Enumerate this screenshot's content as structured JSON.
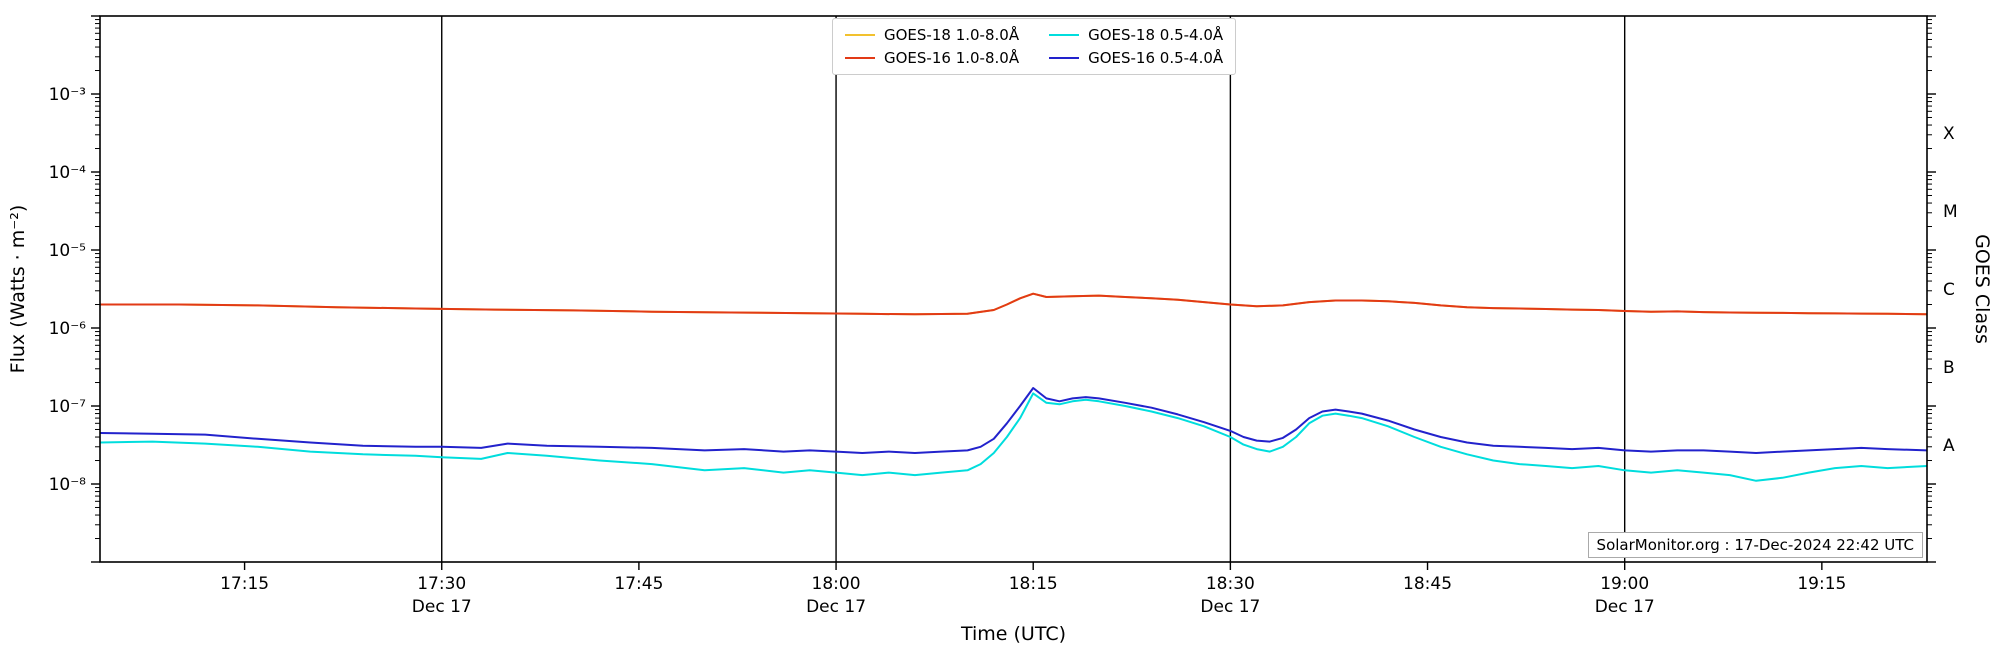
{
  "figure": {
    "background": "#ffffff",
    "annotation": "SolarMonitor.org : 17-Dec-2024 22:42 UTC"
  },
  "chart_data": {
    "type": "line",
    "title": "",
    "xlabel": "Time (UTC)",
    "ylabel": "Flux (Watts · m⁻²)",
    "ylabel_right": "GOES Class",
    "x_unit": "minutes after 17:00 UTC",
    "xlim": [
      4,
      143
    ],
    "ylim_log10": [
      -9,
      -2
    ],
    "grid": false,
    "legend_position": "top-center",
    "x_ticks": [
      {
        "t": 15,
        "label": "17:15"
      },
      {
        "t": 30,
        "label": "17:30",
        "day": "Dec 17"
      },
      {
        "t": 45,
        "label": "17:45"
      },
      {
        "t": 60,
        "label": "18:00",
        "day": "Dec 17"
      },
      {
        "t": 75,
        "label": "18:15"
      },
      {
        "t": 90,
        "label": "18:30",
        "day": "Dec 17"
      },
      {
        "t": 105,
        "label": "18:45"
      },
      {
        "t": 120,
        "label": "19:00",
        "day": "Dec 17"
      },
      {
        "t": 135,
        "label": "19:15"
      }
    ],
    "day_lines": [
      30,
      60,
      90,
      120
    ],
    "y_ticks": [
      {
        "log10": -3,
        "label": "10⁻³"
      },
      {
        "log10": -4,
        "label": "10⁻⁴"
      },
      {
        "log10": -5,
        "label": "10⁻⁵"
      },
      {
        "log10": -6,
        "label": "10⁻⁶"
      },
      {
        "log10": -7,
        "label": "10⁻⁷"
      },
      {
        "log10": -8,
        "label": "10⁻⁸"
      }
    ],
    "goes_classes": [
      {
        "label": "X",
        "log10": -3.5
      },
      {
        "label": "M",
        "log10": -4.5
      },
      {
        "label": "C",
        "log10": -5.5
      },
      {
        "label": "B",
        "log10": -6.5
      },
      {
        "label": "A",
        "log10": -7.5
      }
    ],
    "series": [
      {
        "name": "GOES-18 1.0-8.0Å",
        "color": "#f2c12e",
        "points": [
          [
            4,
            2e-06
          ],
          [
            10,
            2e-06
          ],
          [
            16,
            1.95e-06
          ],
          [
            22,
            1.85e-06
          ],
          [
            28,
            1.78e-06
          ],
          [
            34,
            1.72e-06
          ],
          [
            40,
            1.68e-06
          ],
          [
            46,
            1.62e-06
          ],
          [
            52,
            1.58e-06
          ],
          [
            58,
            1.55e-06
          ],
          [
            62,
            1.52e-06
          ],
          [
            66,
            1.5e-06
          ],
          [
            70,
            1.52e-06
          ],
          [
            72,
            1.7e-06
          ],
          [
            73,
            2e-06
          ],
          [
            74,
            2.4e-06
          ],
          [
            75,
            2.75e-06
          ],
          [
            76,
            2.5e-06
          ],
          [
            78,
            2.55e-06
          ],
          [
            80,
            2.6e-06
          ],
          [
            82,
            2.5e-06
          ],
          [
            84,
            2.4e-06
          ],
          [
            86,
            2.3e-06
          ],
          [
            88,
            2.15e-06
          ],
          [
            90,
            2e-06
          ],
          [
            92,
            1.9e-06
          ],
          [
            94,
            1.95e-06
          ],
          [
            96,
            2.15e-06
          ],
          [
            98,
            2.25e-06
          ],
          [
            100,
            2.25e-06
          ],
          [
            102,
            2.2e-06
          ],
          [
            104,
            2.1e-06
          ],
          [
            106,
            1.95e-06
          ],
          [
            108,
            1.85e-06
          ],
          [
            110,
            1.8e-06
          ],
          [
            112,
            1.78e-06
          ],
          [
            114,
            1.75e-06
          ],
          [
            116,
            1.72e-06
          ],
          [
            118,
            1.7e-06
          ],
          [
            120,
            1.65e-06
          ],
          [
            122,
            1.62e-06
          ],
          [
            124,
            1.63e-06
          ],
          [
            126,
            1.6e-06
          ],
          [
            128,
            1.58e-06
          ],
          [
            130,
            1.57e-06
          ],
          [
            132,
            1.56e-06
          ],
          [
            134,
            1.55e-06
          ],
          [
            136,
            1.54e-06
          ],
          [
            138,
            1.53e-06
          ],
          [
            140,
            1.52e-06
          ],
          [
            143,
            1.5e-06
          ]
        ]
      },
      {
        "name": "GOES-16 1.0-8.0Å",
        "color": "#e23a16",
        "points": [
          [
            4,
            2e-06
          ],
          [
            10,
            2e-06
          ],
          [
            16,
            1.95e-06
          ],
          [
            22,
            1.85e-06
          ],
          [
            28,
            1.78e-06
          ],
          [
            34,
            1.72e-06
          ],
          [
            40,
            1.68e-06
          ],
          [
            46,
            1.62e-06
          ],
          [
            52,
            1.58e-06
          ],
          [
            58,
            1.55e-06
          ],
          [
            62,
            1.52e-06
          ],
          [
            66,
            1.5e-06
          ],
          [
            70,
            1.52e-06
          ],
          [
            72,
            1.7e-06
          ],
          [
            73,
            2e-06
          ],
          [
            74,
            2.4e-06
          ],
          [
            75,
            2.75e-06
          ],
          [
            76,
            2.5e-06
          ],
          [
            78,
            2.55e-06
          ],
          [
            80,
            2.6e-06
          ],
          [
            82,
            2.5e-06
          ],
          [
            84,
            2.4e-06
          ],
          [
            86,
            2.3e-06
          ],
          [
            88,
            2.15e-06
          ],
          [
            90,
            2e-06
          ],
          [
            92,
            1.9e-06
          ],
          [
            94,
            1.95e-06
          ],
          [
            96,
            2.15e-06
          ],
          [
            98,
            2.25e-06
          ],
          [
            100,
            2.25e-06
          ],
          [
            102,
            2.2e-06
          ],
          [
            104,
            2.1e-06
          ],
          [
            106,
            1.95e-06
          ],
          [
            108,
            1.85e-06
          ],
          [
            110,
            1.8e-06
          ],
          [
            112,
            1.78e-06
          ],
          [
            114,
            1.75e-06
          ],
          [
            116,
            1.72e-06
          ],
          [
            118,
            1.7e-06
          ],
          [
            120,
            1.65e-06
          ],
          [
            122,
            1.62e-06
          ],
          [
            124,
            1.63e-06
          ],
          [
            126,
            1.6e-06
          ],
          [
            128,
            1.58e-06
          ],
          [
            130,
            1.57e-06
          ],
          [
            132,
            1.56e-06
          ],
          [
            134,
            1.55e-06
          ],
          [
            136,
            1.54e-06
          ],
          [
            138,
            1.53e-06
          ],
          [
            140,
            1.52e-06
          ],
          [
            143,
            1.5e-06
          ]
        ]
      },
      {
        "name": "GOES-18 0.5-4.0Å",
        "color": "#00dddd",
        "points": [
          [
            4,
            3.4e-08
          ],
          [
            8,
            3.5e-08
          ],
          [
            12,
            3.3e-08
          ],
          [
            16,
            3e-08
          ],
          [
            20,
            2.6e-08
          ],
          [
            24,
            2.4e-08
          ],
          [
            28,
            2.3e-08
          ],
          [
            30,
            2.2e-08
          ],
          [
            33,
            2.1e-08
          ],
          [
            35,
            2.5e-08
          ],
          [
            38,
            2.3e-08
          ],
          [
            42,
            2e-08
          ],
          [
            46,
            1.8e-08
          ],
          [
            50,
            1.5e-08
          ],
          [
            53,
            1.6e-08
          ],
          [
            56,
            1.4e-08
          ],
          [
            58,
            1.5e-08
          ],
          [
            60,
            1.4e-08
          ],
          [
            62,
            1.3e-08
          ],
          [
            64,
            1.4e-08
          ],
          [
            66,
            1.3e-08
          ],
          [
            68,
            1.4e-08
          ],
          [
            70,
            1.5e-08
          ],
          [
            71,
            1.8e-08
          ],
          [
            72,
            2.5e-08
          ],
          [
            73,
            4e-08
          ],
          [
            74,
            7e-08
          ],
          [
            75,
            1.45e-07
          ],
          [
            76,
            1.1e-07
          ],
          [
            77,
            1.05e-07
          ],
          [
            78,
            1.15e-07
          ],
          [
            79,
            1.2e-07
          ],
          [
            80,
            1.15e-07
          ],
          [
            82,
            1e-07
          ],
          [
            84,
            8.5e-08
          ],
          [
            86,
            7e-08
          ],
          [
            88,
            5.5e-08
          ],
          [
            90,
            4e-08
          ],
          [
            91,
            3.2e-08
          ],
          [
            92,
            2.8e-08
          ],
          [
            93,
            2.6e-08
          ],
          [
            94,
            3e-08
          ],
          [
            95,
            4e-08
          ],
          [
            96,
            6e-08
          ],
          [
            97,
            7.5e-08
          ],
          [
            98,
            8e-08
          ],
          [
            99,
            7.5e-08
          ],
          [
            100,
            7e-08
          ],
          [
            102,
            5.5e-08
          ],
          [
            104,
            4e-08
          ],
          [
            106,
            3e-08
          ],
          [
            108,
            2.4e-08
          ],
          [
            110,
            2e-08
          ],
          [
            112,
            1.8e-08
          ],
          [
            114,
            1.7e-08
          ],
          [
            116,
            1.6e-08
          ],
          [
            118,
            1.7e-08
          ],
          [
            120,
            1.5e-08
          ],
          [
            122,
            1.4e-08
          ],
          [
            124,
            1.5e-08
          ],
          [
            126,
            1.4e-08
          ],
          [
            128,
            1.3e-08
          ],
          [
            130,
            1.1e-08
          ],
          [
            132,
            1.2e-08
          ],
          [
            134,
            1.4e-08
          ],
          [
            136,
            1.6e-08
          ],
          [
            138,
            1.7e-08
          ],
          [
            140,
            1.6e-08
          ],
          [
            143,
            1.7e-08
          ]
        ]
      },
      {
        "name": "GOES-16 0.5-4.0Å",
        "color": "#2222cc",
        "points": [
          [
            4,
            4.5e-08
          ],
          [
            8,
            4.4e-08
          ],
          [
            12,
            4.3e-08
          ],
          [
            16,
            3.8e-08
          ],
          [
            20,
            3.4e-08
          ],
          [
            24,
            3.1e-08
          ],
          [
            28,
            3e-08
          ],
          [
            30,
            3e-08
          ],
          [
            33,
            2.9e-08
          ],
          [
            35,
            3.3e-08
          ],
          [
            38,
            3.1e-08
          ],
          [
            42,
            3e-08
          ],
          [
            46,
            2.9e-08
          ],
          [
            50,
            2.7e-08
          ],
          [
            53,
            2.8e-08
          ],
          [
            56,
            2.6e-08
          ],
          [
            58,
            2.7e-08
          ],
          [
            60,
            2.6e-08
          ],
          [
            62,
            2.5e-08
          ],
          [
            64,
            2.6e-08
          ],
          [
            66,
            2.5e-08
          ],
          [
            68,
            2.6e-08
          ],
          [
            70,
            2.7e-08
          ],
          [
            71,
            3e-08
          ],
          [
            72,
            3.8e-08
          ],
          [
            73,
            6e-08
          ],
          [
            74,
            1e-07
          ],
          [
            75,
            1.7e-07
          ],
          [
            76,
            1.25e-07
          ],
          [
            77,
            1.15e-07
          ],
          [
            78,
            1.25e-07
          ],
          [
            79,
            1.3e-07
          ],
          [
            80,
            1.25e-07
          ],
          [
            82,
            1.1e-07
          ],
          [
            84,
            9.5e-08
          ],
          [
            86,
            7.8e-08
          ],
          [
            88,
            6.2e-08
          ],
          [
            90,
            4.8e-08
          ],
          [
            91,
            4e-08
          ],
          [
            92,
            3.6e-08
          ],
          [
            93,
            3.5e-08
          ],
          [
            94,
            3.9e-08
          ],
          [
            95,
            5e-08
          ],
          [
            96,
            7e-08
          ],
          [
            97,
            8.5e-08
          ],
          [
            98,
            9e-08
          ],
          [
            99,
            8.5e-08
          ],
          [
            100,
            8e-08
          ],
          [
            102,
            6.5e-08
          ],
          [
            104,
            5e-08
          ],
          [
            106,
            4e-08
          ],
          [
            108,
            3.4e-08
          ],
          [
            110,
            3.1e-08
          ],
          [
            112,
            3e-08
          ],
          [
            114,
            2.9e-08
          ],
          [
            116,
            2.8e-08
          ],
          [
            118,
            2.9e-08
          ],
          [
            120,
            2.7e-08
          ],
          [
            122,
            2.6e-08
          ],
          [
            124,
            2.7e-08
          ],
          [
            126,
            2.7e-08
          ],
          [
            128,
            2.6e-08
          ],
          [
            130,
            2.5e-08
          ],
          [
            132,
            2.6e-08
          ],
          [
            134,
            2.7e-08
          ],
          [
            136,
            2.8e-08
          ],
          [
            138,
            2.9e-08
          ],
          [
            140,
            2.8e-08
          ],
          [
            143,
            2.7e-08
          ]
        ]
      }
    ]
  }
}
